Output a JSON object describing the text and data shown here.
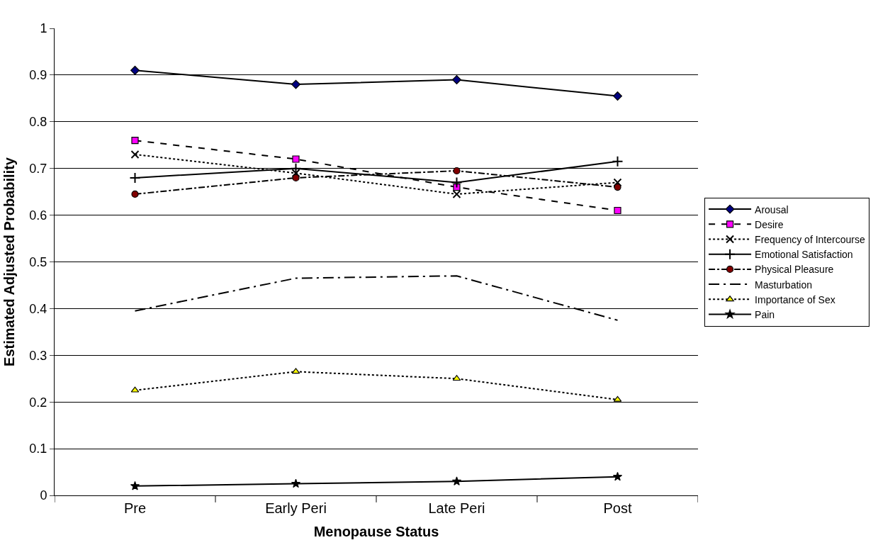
{
  "chart_data": {
    "type": "line",
    "xlabel": "Menopause Status",
    "ylabel": "Estimated Adjusted Probability",
    "categories": [
      "Pre",
      "Early Peri",
      "Late Peri",
      "Post"
    ],
    "ylim": [
      0,
      1
    ],
    "yticks": [
      0,
      0.1,
      0.2,
      0.3,
      0.4,
      0.5,
      0.6,
      0.7,
      0.8,
      0.9,
      1
    ],
    "grid": "y",
    "legend": "right",
    "series": [
      {
        "name": "Arousal",
        "color": "#000080",
        "marker": "diamond",
        "line_style": "solid",
        "values": [
          0.91,
          0.88,
          0.89,
          0.855
        ]
      },
      {
        "name": "Desire",
        "color": "#ff00ff",
        "marker": "square",
        "line_style": "dashed",
        "values": [
          0.76,
          0.72,
          0.66,
          0.61
        ]
      },
      {
        "name": "Frequency of Intercourse",
        "color": "#000000",
        "marker": "cross",
        "line_style": "dotted",
        "values": [
          0.73,
          0.69,
          0.645,
          0.67
        ]
      },
      {
        "name": "Emotional Satisfaction",
        "color": "#000000",
        "marker": "plus",
        "line_style": "solid",
        "values": [
          0.68,
          0.7,
          0.67,
          0.715
        ]
      },
      {
        "name": "Physical Pleasure",
        "color": "#800000",
        "marker": "circle",
        "line_style": "dashdot",
        "values": [
          0.645,
          0.68,
          0.695,
          0.66
        ]
      },
      {
        "name": "Masturbation",
        "color": "#000000",
        "marker": "none",
        "line_style": "longdashdot",
        "values": [
          0.395,
          0.465,
          0.47,
          0.375
        ]
      },
      {
        "name": "Importance of Sex",
        "color": "#ffff00",
        "marker": "triangle",
        "line_style": "dotted",
        "values": [
          0.225,
          0.265,
          0.25,
          0.205
        ]
      },
      {
        "name": "Pain",
        "color": "#000000",
        "marker": "star",
        "line_style": "solid",
        "values": [
          0.02,
          0.025,
          0.03,
          0.04
        ]
      }
    ]
  }
}
